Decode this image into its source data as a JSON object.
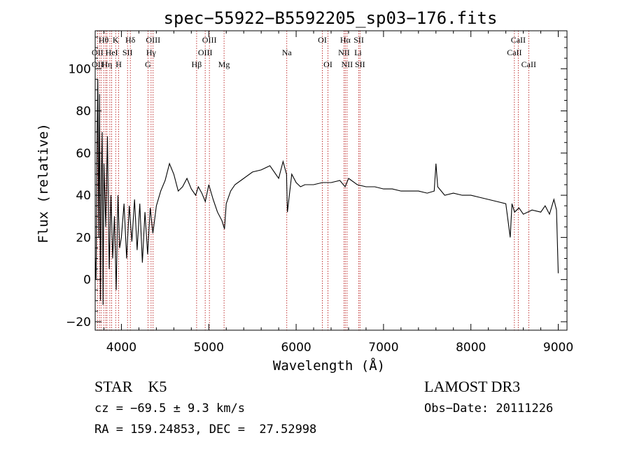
{
  "chart_data": {
    "type": "line",
    "title": "spec−55922−B5592205_sp03−176.fits",
    "xlabel": "Wavelength (Å)",
    "ylabel": "Flux (relative)",
    "xlim": [
      3700,
      9100
    ],
    "ylim": [
      -24,
      118
    ],
    "x_ticks": [
      4000,
      5000,
      6000,
      7000,
      8000,
      9000
    ],
    "y_ticks": [
      -20,
      0,
      20,
      40,
      60,
      80,
      100
    ],
    "x_tick_labels": [
      "4000",
      "5000",
      "6000",
      "7000",
      "8000",
      "9000"
    ],
    "y_tick_labels": [
      "−20",
      "0",
      "20",
      "40",
      "60",
      "80",
      "100"
    ],
    "series": [
      {
        "name": "spectrum",
        "color": "#000000",
        "x": [
          3700,
          3710,
          3720,
          3730,
          3740,
          3750,
          3760,
          3770,
          3780,
          3790,
          3800,
          3820,
          3840,
          3860,
          3880,
          3900,
          3920,
          3940,
          3960,
          3980,
          4000,
          4030,
          4060,
          4090,
          4120,
          4150,
          4180,
          4210,
          4240,
          4270,
          4300,
          4330,
          4360,
          4400,
          4450,
          4500,
          4550,
          4600,
          4650,
          4700,
          4750,
          4800,
          4850,
          4880,
          4920,
          4960,
          5000,
          5050,
          5100,
          5150,
          5180,
          5200,
          5250,
          5300,
          5400,
          5500,
          5600,
          5700,
          5800,
          5850,
          5890,
          5900,
          5950,
          6000,
          6050,
          6100,
          6200,
          6300,
          6400,
          6500,
          6560,
          6600,
          6700,
          6800,
          6900,
          7000,
          7100,
          7200,
          7300,
          7400,
          7500,
          7580,
          7600,
          7620,
          7700,
          7800,
          7900,
          8000,
          8100,
          8200,
          8300,
          8400,
          8450,
          8470,
          8500,
          8550,
          8600,
          8700,
          8800,
          8850,
          8900,
          8950,
          8980,
          9000
        ],
        "y": [
          10,
          0,
          60,
          95,
          20,
          88,
          -10,
          45,
          70,
          -12,
          55,
          25,
          68,
          5,
          40,
          10,
          30,
          -5,
          40,
          15,
          20,
          36,
          10,
          35,
          18,
          38,
          14,
          36,
          8,
          32,
          12,
          34,
          22,
          35,
          42,
          47,
          55,
          50,
          42,
          44,
          48,
          43,
          40,
          44,
          41,
          37,
          45,
          38,
          32,
          28,
          24,
          36,
          42,
          45,
          48,
          51,
          52,
          54,
          48,
          56,
          50,
          32,
          50,
          46,
          44,
          45,
          45,
          46,
          46,
          47,
          44,
          48,
          45,
          44,
          44,
          43,
          43,
          42,
          42,
          42,
          41,
          42,
          55,
          44,
          40,
          41,
          40,
          40,
          39,
          38,
          37,
          36,
          20,
          36,
          32,
          34,
          31,
          33,
          32,
          35,
          31,
          38,
          33,
          3
        ]
      }
    ],
    "lines": {
      "xs": [
        3727,
        3750,
        3770,
        3797,
        3820,
        3835,
        3868,
        3889,
        3934,
        3969,
        4070,
        4102,
        4304,
        4340,
        4363,
        4861,
        4959,
        5007,
        5175,
        5893,
        6300,
        6364,
        6548,
        6563,
        6583,
        6717,
        6731,
        8498,
        8542,
        8662
      ],
      "labels": [
        {
          "text": "OII",
          "x": 3727,
          "row": 2
        },
        {
          "text": "Hθ",
          "x": 3797,
          "row": 1
        },
        {
          "text": "OII",
          "x": 3727,
          "row": 3
        },
        {
          "text": "HeI",
          "x": 3889,
          "row": 2
        },
        {
          "text": "Hη",
          "x": 3835,
          "row": 3
        },
        {
          "text": "K",
          "x": 3934,
          "row": 1
        },
        {
          "text": "H",
          "x": 3969,
          "row": 3
        },
        {
          "text": "SII",
          "x": 4070,
          "row": 2
        },
        {
          "text": "Hδ",
          "x": 4102,
          "row": 1
        },
        {
          "text": "OIII",
          "x": 4363,
          "row": 1
        },
        {
          "text": "Hγ",
          "x": 4340,
          "row": 2
        },
        {
          "text": "G",
          "x": 4304,
          "row": 3
        },
        {
          "text": "Hβ",
          "x": 4861,
          "row": 3
        },
        {
          "text": "OIII",
          "x": 5007,
          "row": 1
        },
        {
          "text": "OIII",
          "x": 4959,
          "row": 2
        },
        {
          "text": "Mg",
          "x": 5175,
          "row": 3
        },
        {
          "text": "Na",
          "x": 5893,
          "row": 2
        },
        {
          "text": "OI",
          "x": 6300,
          "row": 1
        },
        {
          "text": "OI",
          "x": 6364,
          "row": 3
        },
        {
          "text": "Hα",
          "x": 6563,
          "row": 1
        },
        {
          "text": "SII",
          "x": 6717,
          "row": 1
        },
        {
          "text": "NII",
          "x": 6548,
          "row": 2
        },
        {
          "text": "Li",
          "x": 6708,
          "row": 2
        },
        {
          "text": "NII",
          "x": 6583,
          "row": 3
        },
        {
          "text": "SII",
          "x": 6731,
          "row": 3
        },
        {
          "text": "CaII",
          "x": 8542,
          "row": 1
        },
        {
          "text": "CaII",
          "x": 8498,
          "row": 2
        },
        {
          "text": "CaII",
          "x": 8662,
          "row": 3
        }
      ]
    }
  },
  "info": {
    "class_line": "STAR    K5",
    "survey": "LAMOST DR3",
    "cz_line": "cz = −69.5 ± 9.3 km/s",
    "obs_line": "Obs−Date: 20111226",
    "radec_line": "RA = 159.24853, DEC =  27.52998"
  }
}
